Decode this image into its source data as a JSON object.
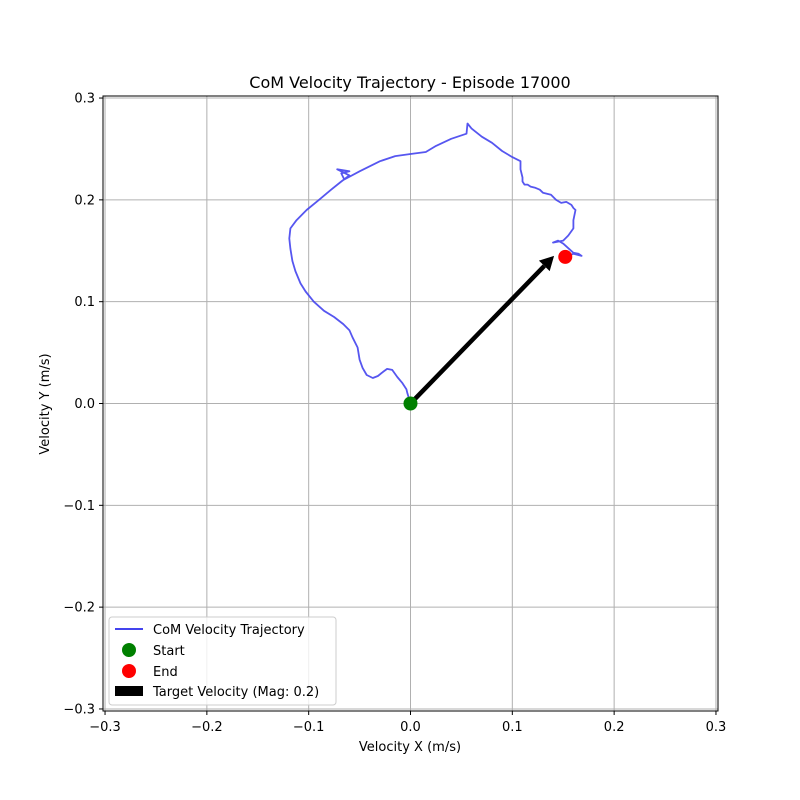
{
  "chart_data": {
    "type": "line",
    "title": "CoM Velocity Trajectory - Episode 17000",
    "xlabel": "Velocity X (m/s)",
    "ylabel": "Velocity Y (m/s)",
    "xlim": [
      -0.302,
      0.302
    ],
    "ylim": [
      -0.302,
      0.302
    ],
    "xticks": [
      -0.3,
      -0.2,
      -0.1,
      0.0,
      0.1,
      0.2,
      0.3
    ],
    "yticks": [
      -0.3,
      -0.2,
      -0.1,
      0.0,
      0.1,
      0.2,
      0.3
    ],
    "xtick_labels": [
      "−0.3",
      "−0.2",
      "−0.1",
      "0.0",
      "0.1",
      "0.2",
      "0.3"
    ],
    "ytick_labels": [
      "−0.3",
      "−0.2",
      "−0.1",
      "0.0",
      "0.1",
      "0.2",
      "0.3"
    ],
    "grid": true,
    "legend_position": "bottom-left",
    "series": [
      {
        "name": "CoM Velocity Trajectory",
        "color": "#4444ee",
        "points": [
          [
            0.0,
            0.0
          ],
          [
            -0.003,
            0.01
          ],
          [
            -0.004,
            0.014
          ],
          [
            -0.008,
            0.02
          ],
          [
            -0.013,
            0.026
          ],
          [
            -0.018,
            0.033
          ],
          [
            -0.023,
            0.034
          ],
          [
            -0.027,
            0.031
          ],
          [
            -0.032,
            0.027
          ],
          [
            -0.037,
            0.025
          ],
          [
            -0.043,
            0.028
          ],
          [
            -0.047,
            0.035
          ],
          [
            -0.05,
            0.043
          ],
          [
            -0.052,
            0.055
          ],
          [
            -0.057,
            0.065
          ],
          [
            -0.06,
            0.072
          ],
          [
            -0.066,
            0.078
          ],
          [
            -0.075,
            0.085
          ],
          [
            -0.085,
            0.091
          ],
          [
            -0.095,
            0.1
          ],
          [
            -0.103,
            0.11
          ],
          [
            -0.108,
            0.118
          ],
          [
            -0.113,
            0.13
          ],
          [
            -0.116,
            0.14
          ],
          [
            -0.118,
            0.152
          ],
          [
            -0.119,
            0.162
          ],
          [
            -0.118,
            0.172
          ],
          [
            -0.112,
            0.18
          ],
          [
            -0.102,
            0.19
          ],
          [
            -0.09,
            0.2
          ],
          [
            -0.078,
            0.21
          ],
          [
            -0.068,
            0.218
          ],
          [
            -0.06,
            0.224
          ],
          [
            -0.072,
            0.23
          ],
          [
            -0.06,
            0.228
          ],
          [
            -0.068,
            0.226
          ],
          [
            -0.065,
            0.22
          ],
          [
            -0.05,
            0.228
          ],
          [
            -0.03,
            0.238
          ],
          [
            -0.015,
            0.243
          ],
          [
            0.0,
            0.245
          ],
          [
            0.015,
            0.247
          ],
          [
            0.025,
            0.253
          ],
          [
            0.04,
            0.26
          ],
          [
            0.055,
            0.265
          ],
          [
            0.056,
            0.275
          ],
          [
            0.06,
            0.27
          ],
          [
            0.07,
            0.262
          ],
          [
            0.08,
            0.256
          ],
          [
            0.09,
            0.248
          ],
          [
            0.1,
            0.242
          ],
          [
            0.108,
            0.238
          ],
          [
            0.108,
            0.23
          ],
          [
            0.11,
            0.222
          ],
          [
            0.11,
            0.218
          ],
          [
            0.112,
            0.215
          ],
          [
            0.115,
            0.215
          ],
          [
            0.118,
            0.213
          ],
          [
            0.122,
            0.212
          ],
          [
            0.127,
            0.21
          ],
          [
            0.13,
            0.207
          ],
          [
            0.138,
            0.205
          ],
          [
            0.143,
            0.2
          ],
          [
            0.148,
            0.197
          ],
          [
            0.153,
            0.198
          ],
          [
            0.158,
            0.195
          ],
          [
            0.16,
            0.192
          ],
          [
            0.162,
            0.19
          ],
          [
            0.16,
            0.18
          ],
          [
            0.16,
            0.172
          ],
          [
            0.155,
            0.165
          ],
          [
            0.15,
            0.16
          ],
          [
            0.14,
            0.158
          ],
          [
            0.145,
            0.16
          ],
          [
            0.15,
            0.157
          ],
          [
            0.16,
            0.148
          ],
          [
            0.165,
            0.147
          ],
          [
            0.168,
            0.145
          ],
          [
            0.16,
            0.147
          ],
          [
            0.152,
            0.144
          ]
        ]
      }
    ],
    "start": {
      "label": "Start",
      "x": 0.0,
      "y": 0.0,
      "color": "#008000"
    },
    "end": {
      "label": "End",
      "x": 0.152,
      "y": 0.144,
      "color": "#ff0000"
    },
    "target_arrow": {
      "label": "Target Velocity (Mag: 0.2)",
      "from": [
        0.0,
        0.0
      ],
      "to": [
        0.141,
        0.145
      ],
      "color": "#000000"
    }
  }
}
